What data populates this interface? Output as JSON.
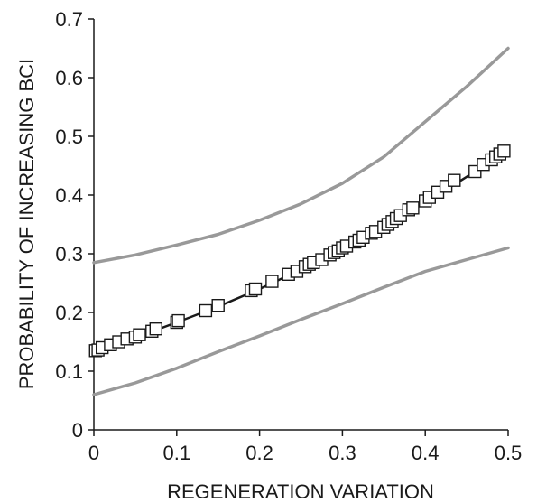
{
  "chart_data": {
    "type": "scatter",
    "xlabel": "REGENERATION VARIATION",
    "ylabel": "PROBABILITY OF INCREASING BCI",
    "xlim": [
      0,
      0.5
    ],
    "ylim": [
      0,
      0.7
    ],
    "x_ticks": [
      "0",
      "0.1",
      "0.2",
      "0.3",
      "0.4",
      "0.5"
    ],
    "y_ticks": [
      "0",
      "0.1",
      "0.2",
      "0.3",
      "0.4",
      "0.5",
      "0.6",
      "0.7"
    ],
    "grid": false,
    "series": [
      {
        "role": "fit",
        "style": "line",
        "color": "#1a1a1a",
        "x": [
          0,
          0.05,
          0.1,
          0.15,
          0.2,
          0.25,
          0.3,
          0.35,
          0.4,
          0.45,
          0.5
        ],
        "y": [
          0.133,
          0.157,
          0.183,
          0.21,
          0.24,
          0.273,
          0.308,
          0.346,
          0.387,
          0.431,
          0.478
        ]
      },
      {
        "role": "upper-bound",
        "style": "line",
        "color": "#999999",
        "x": [
          0,
          0.05,
          0.1,
          0.15,
          0.2,
          0.25,
          0.3,
          0.35,
          0.4,
          0.45,
          0.5
        ],
        "y": [
          0.285,
          0.298,
          0.315,
          0.333,
          0.357,
          0.385,
          0.42,
          0.465,
          0.525,
          0.585,
          0.65
        ]
      },
      {
        "role": "lower-bound",
        "style": "line",
        "color": "#999999",
        "x": [
          0,
          0.05,
          0.1,
          0.15,
          0.2,
          0.25,
          0.3,
          0.35,
          0.4,
          0.45,
          0.5
        ],
        "y": [
          0.06,
          0.08,
          0.105,
          0.133,
          0.16,
          0.188,
          0.215,
          0.243,
          0.27,
          0.29,
          0.31
        ]
      },
      {
        "role": "observations",
        "style": "markers",
        "marker": "square",
        "color": "#1a1a1a",
        "x": [
          0.002,
          0.005,
          0.01,
          0.02,
          0.03,
          0.04,
          0.05,
          0.055,
          0.07,
          0.075,
          0.1,
          0.102,
          0.135,
          0.15,
          0.19,
          0.195,
          0.215,
          0.235,
          0.245,
          0.255,
          0.26,
          0.265,
          0.275,
          0.285,
          0.29,
          0.295,
          0.3,
          0.305,
          0.315,
          0.32,
          0.325,
          0.335,
          0.34,
          0.35,
          0.355,
          0.36,
          0.365,
          0.37,
          0.38,
          0.385,
          0.4,
          0.405,
          0.415,
          0.425,
          0.435,
          0.46,
          0.47,
          0.48,
          0.485,
          0.49,
          0.495
        ],
        "y": [
          0.135,
          0.136,
          0.14,
          0.145,
          0.15,
          0.155,
          0.158,
          0.162,
          0.168,
          0.172,
          0.183,
          0.186,
          0.203,
          0.212,
          0.237,
          0.24,
          0.253,
          0.265,
          0.27,
          0.278,
          0.282,
          0.285,
          0.29,
          0.298,
          0.302,
          0.305,
          0.31,
          0.313,
          0.32,
          0.323,
          0.328,
          0.335,
          0.338,
          0.345,
          0.35,
          0.355,
          0.36,
          0.365,
          0.375,
          0.378,
          0.39,
          0.396,
          0.405,
          0.415,
          0.425,
          0.44,
          0.452,
          0.46,
          0.465,
          0.47,
          0.475
        ]
      }
    ]
  }
}
